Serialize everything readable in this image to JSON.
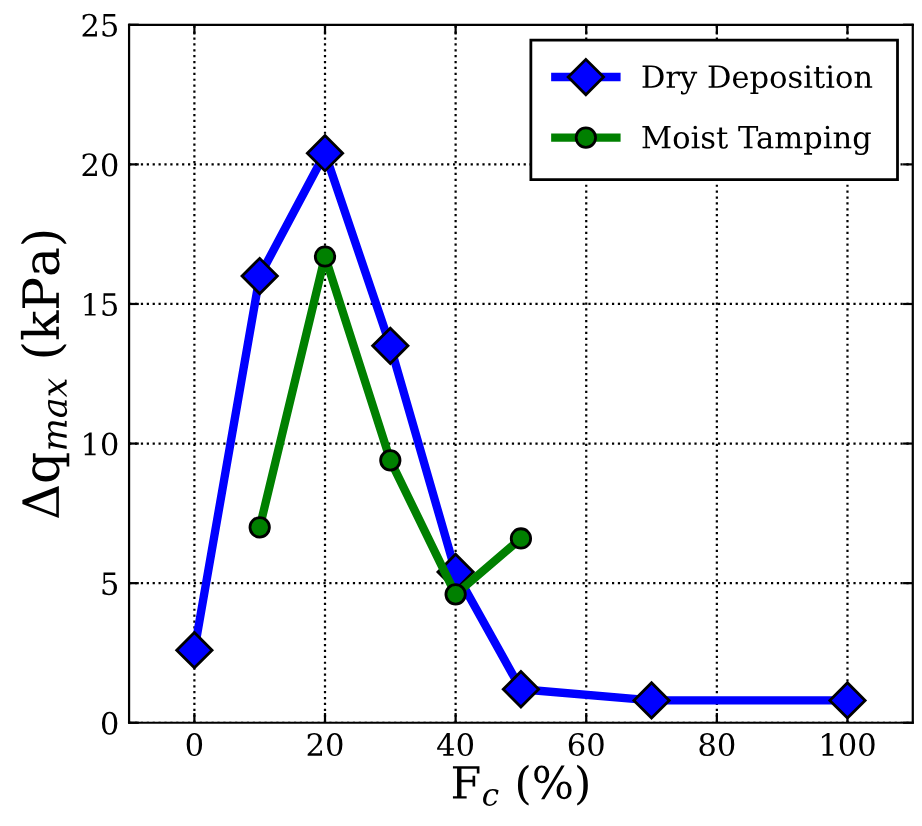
{
  "chart_data": {
    "type": "line",
    "xlabel": "F$_{c}$ (%)",
    "ylabel": "Δq$_{max}$ (kPa)",
    "xlim": [
      -10,
      110
    ],
    "ylim": [
      0,
      25
    ],
    "xticks": [
      0,
      20,
      40,
      60,
      80,
      100
    ],
    "yticks": [
      0,
      5,
      10,
      15,
      20,
      25
    ],
    "grid": true,
    "legend": "top right",
    "series": [
      {
        "name": "Dry Deposition",
        "color": "#0000ff",
        "marker": "diamond",
        "x": [
          0,
          10,
          20,
          30,
          40,
          50,
          70,
          100
        ],
        "values": [
          2.6,
          16,
          20.4,
          13.5,
          5.4,
          1.2,
          0.8,
          0.8
        ]
      },
      {
        "name": "Moist Tamping",
        "color": "#008000",
        "marker": "circle",
        "x": [
          10,
          20,
          30,
          40,
          50
        ],
        "values": [
          7,
          16.7,
          9.4,
          4.6,
          6.6
        ]
      }
    ]
  }
}
